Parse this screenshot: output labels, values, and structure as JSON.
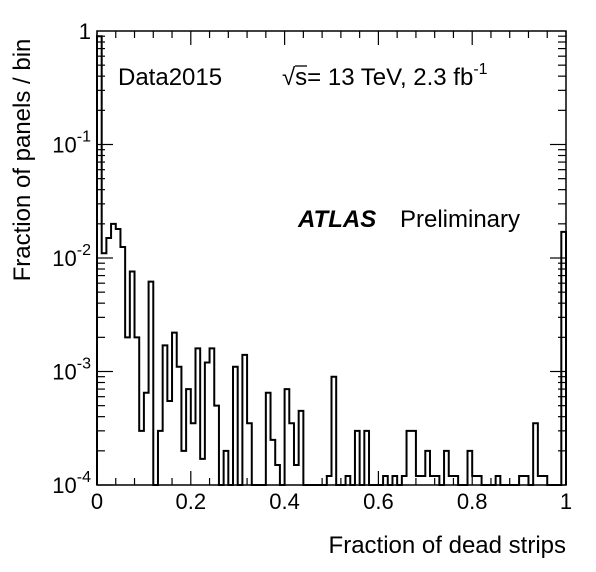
{
  "chart_data": {
    "type": "histogram",
    "xlabel": "Fraction of dead strips",
    "ylabel": "Fraction of panels / bin",
    "xlim": [
      0,
      1
    ],
    "ylim": [
      0.0001,
      1
    ],
    "y_scale": "log",
    "grid": false,
    "x_ticks": [
      "0",
      "0.2",
      "0.4",
      "0.6",
      "0.8",
      "1"
    ],
    "y_ticks": [
      {
        "base": "10",
        "exp": "-4"
      },
      {
        "base": "10",
        "exp": "-3"
      },
      {
        "base": "10",
        "exp": "-2"
      },
      {
        "base": "10",
        "exp": "-1"
      },
      {
        "base": "1",
        "exp": ""
      }
    ],
    "annotations": {
      "dataset": "Data2015",
      "sqrt_symbol": "√",
      "energy_prefix": "s= 13 TeV, 2.3 fb",
      "lumi_exp": "-1",
      "experiment": "ATLAS",
      "status": "Preliminary"
    },
    "bin_width": 0.01,
    "bin_values": [
      0.9,
      0.011,
      0.015,
      0.02,
      0.018,
      0.0125,
      0.002,
      0.0076,
      0.002,
      0.0003,
      0.00065,
      0.0062,
      0.0001,
      0.0003,
      0.0017,
      0.00055,
      0.0022,
      0.0011,
      0.0002,
      0.0007,
      0.00035,
      0.0016,
      0.00017,
      0.0012,
      0.0016,
      0.0005,
      0.0001,
      0.0002,
      0.0001,
      0.0011,
      0.0001,
      0.0014,
      0.00035,
      0.0001,
      0.0001,
      0.0001,
      0.00065,
      0.00025,
      0.00015,
      0.0001,
      0.0007,
      0.00035,
      0.00015,
      0.00045,
      0.0001,
      0.0001,
      0.0001,
      0.0001,
      0.0001,
      0.00012,
      0.0009,
      0.0001,
      0.0001,
      0.00012,
      0.0001,
      0.0003,
      0.0001,
      0.0003,
      0.0001,
      0.0001,
      0.0001,
      0.00012,
      0.0001,
      0.00012,
      0.0001,
      0.00012,
      0.0003,
      0.0003,
      0.00012,
      0.00012,
      0.0002,
      0.00012,
      0.00012,
      0.0001,
      0.0002,
      0.00012,
      0.00012,
      0.0001,
      0.0001,
      0.0002,
      0.00012,
      0.00012,
      0.0001,
      0.0001,
      0.0001,
      0.00012,
      0.0001,
      0.0001,
      0.0001,
      0.0001,
      0.00012,
      0.00012,
      0.0001,
      0.00035,
      0.00012,
      0.00012,
      0.0001,
      0.0001,
      0.0001,
      0.017
    ]
  }
}
